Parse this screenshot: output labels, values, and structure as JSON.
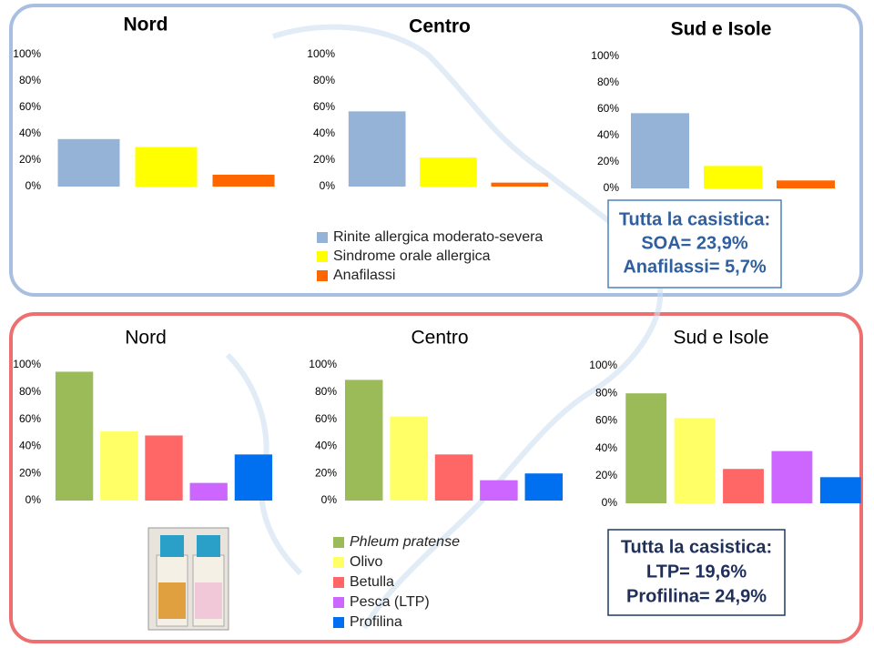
{
  "chart_data": [
    {
      "type": "bar",
      "title": "Nord",
      "categories": [
        null,
        null,
        null
      ],
      "values": [
        36,
        30,
        9
      ],
      "colors": [
        "#95b3d7",
        "#ffff00",
        "#ff6600"
      ],
      "ylim": [
        0,
        100
      ],
      "yticks": [
        {
          "value": 0,
          "label": "0%"
        },
        {
          "value": 20,
          "label": "20%"
        },
        {
          "value": 40,
          "label": "40%"
        },
        {
          "value": 60,
          "label": "60%"
        },
        {
          "value": 80,
          "label": "80%"
        },
        {
          "value": 100,
          "label": "100%"
        }
      ]
    },
    {
      "type": "bar",
      "title": "Centro",
      "categories": [
        null,
        null,
        null
      ],
      "values": [
        57,
        22,
        3
      ],
      "colors": [
        "#95b3d7",
        "#ffff00",
        "#ff6600"
      ],
      "ylim": [
        0,
        100
      ],
      "yticks": [
        {
          "value": 0,
          "label": "0%"
        },
        {
          "value": 20,
          "label": "20%"
        },
        {
          "value": 40,
          "label": "40%"
        },
        {
          "value": 60,
          "label": "60%"
        },
        {
          "value": 80,
          "label": "80%"
        },
        {
          "value": 100,
          "label": "100%"
        }
      ]
    },
    {
      "type": "bar",
      "title": "Sud e Isole",
      "categories": [
        null,
        null,
        null
      ],
      "values": [
        57,
        17,
        6
      ],
      "colors": [
        "#95b3d7",
        "#ffff00",
        "#ff6600"
      ],
      "ylim": [
        0,
        100
      ],
      "yticks": [
        {
          "value": 0,
          "label": "0%"
        },
        {
          "value": 20,
          "label": "20%"
        },
        {
          "value": 40,
          "label": "40%"
        },
        {
          "value": 60,
          "label": "60%"
        },
        {
          "value": 80,
          "label": "80%"
        },
        {
          "value": 100,
          "label": "100%"
        }
      ]
    },
    {
      "type": "bar",
      "title": "Nord",
      "categories": [
        null,
        null,
        null,
        null,
        null
      ],
      "values": [
        95,
        51,
        48,
        13,
        34
      ],
      "colors": [
        "#9bbb59",
        "#ffff66",
        "#ff6666",
        "#cc66ff",
        "#0070f0"
      ],
      "ylim": [
        0,
        100
      ],
      "yticks": [
        {
          "value": 0,
          "label": "0%"
        },
        {
          "value": 20,
          "label": "20%"
        },
        {
          "value": 40,
          "label": "40%"
        },
        {
          "value": 60,
          "label": "60%"
        },
        {
          "value": 80,
          "label": "80%"
        },
        {
          "value": 100,
          "label": "100%"
        }
      ]
    },
    {
      "type": "bar",
      "title": "Centro",
      "categories": [
        null,
        null,
        null,
        null,
        null
      ],
      "values": [
        89,
        62,
        34,
        15,
        20
      ],
      "colors": [
        "#9bbb59",
        "#ffff66",
        "#ff6666",
        "#cc66ff",
        "#0070f0"
      ],
      "ylim": [
        0,
        100
      ],
      "yticks": [
        {
          "value": 0,
          "label": "0%"
        },
        {
          "value": 20,
          "label": "20%"
        },
        {
          "value": 40,
          "label": "40%"
        },
        {
          "value": 60,
          "label": "60%"
        },
        {
          "value": 80,
          "label": "80%"
        },
        {
          "value": 100,
          "label": "100%"
        }
      ]
    },
    {
      "type": "bar",
      "title": "Sud e Isole",
      "categories": [
        null,
        null,
        null,
        null,
        null
      ],
      "values": [
        80,
        62,
        25,
        38,
        19
      ],
      "colors": [
        "#9bbb59",
        "#ffff66",
        "#ff6666",
        "#cc66ff",
        "#0070f0"
      ],
      "ylim": [
        0,
        100
      ],
      "yticks": [
        {
          "value": 0,
          "label": "0%"
        },
        {
          "value": 20,
          "label": "20%"
        },
        {
          "value": 40,
          "label": "40%"
        },
        {
          "value": 60,
          "label": "60%"
        },
        {
          "value": 80,
          "label": "80%"
        },
        {
          "value": 100,
          "label": "100%"
        }
      ]
    }
  ],
  "legends": [
    {
      "items": [
        {
          "label": "Rinite allergica moderato-severa",
          "color": "#95b3d7"
        },
        {
          "label": "Sindrome orale allergica",
          "color": "#ffff00"
        },
        {
          "label": "Anafilassi",
          "color": "#ff6600"
        }
      ]
    },
    {
      "items": [
        {
          "label": "Phleum pratense",
          "color": "#9bbb59"
        },
        {
          "label": "Olivo",
          "color": "#ffff66"
        },
        {
          "label": "Betulla",
          "color": "#ff6666"
        },
        {
          "label": "Pesca (LTP)",
          "color": "#cc66ff"
        },
        {
          "label": "Profilina",
          "color": "#0070f0"
        }
      ]
    }
  ],
  "notes": [
    {
      "lines": [
        "Tutta la casistica:",
        "SOA= 23,9%",
        "Anafilassi= 5,7%"
      ]
    },
    {
      "lines": [
        "Tutta la casistica:",
        "LTP= 19,6%",
        "Profilina= 24,9%"
      ]
    }
  ]
}
